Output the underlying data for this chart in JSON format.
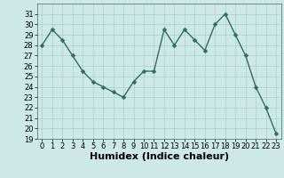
{
  "x": [
    0,
    1,
    2,
    3,
    4,
    5,
    6,
    7,
    8,
    9,
    10,
    11,
    12,
    13,
    14,
    15,
    16,
    17,
    18,
    19,
    20,
    21,
    22,
    23
  ],
  "y": [
    28.0,
    29.5,
    28.5,
    27.0,
    25.5,
    24.5,
    24.0,
    23.5,
    23.0,
    24.5,
    25.5,
    25.5,
    29.5,
    28.0,
    29.5,
    28.5,
    27.5,
    30.0,
    31.0,
    29.0,
    27.0,
    24.0,
    22.0,
    19.5
  ],
  "xlabel": "Humidex (Indice chaleur)",
  "ylim": [
    19,
    32
  ],
  "xlim": [
    -0.5,
    23.5
  ],
  "yticks": [
    19,
    20,
    21,
    22,
    23,
    24,
    25,
    26,
    27,
    28,
    29,
    30,
    31
  ],
  "xticks": [
    0,
    1,
    2,
    3,
    4,
    5,
    6,
    7,
    8,
    9,
    10,
    11,
    12,
    13,
    14,
    15,
    16,
    17,
    18,
    19,
    20,
    21,
    22,
    23
  ],
  "line_color": "#2d6e5e",
  "marker_color": "#2d6e5e",
  "bg_color": "#cce9e7",
  "grid_color": "#aacfcc",
  "xlabel_fontsize": 8,
  "tick_fontsize": 6,
  "linewidth": 1.0,
  "markersize": 2.5
}
